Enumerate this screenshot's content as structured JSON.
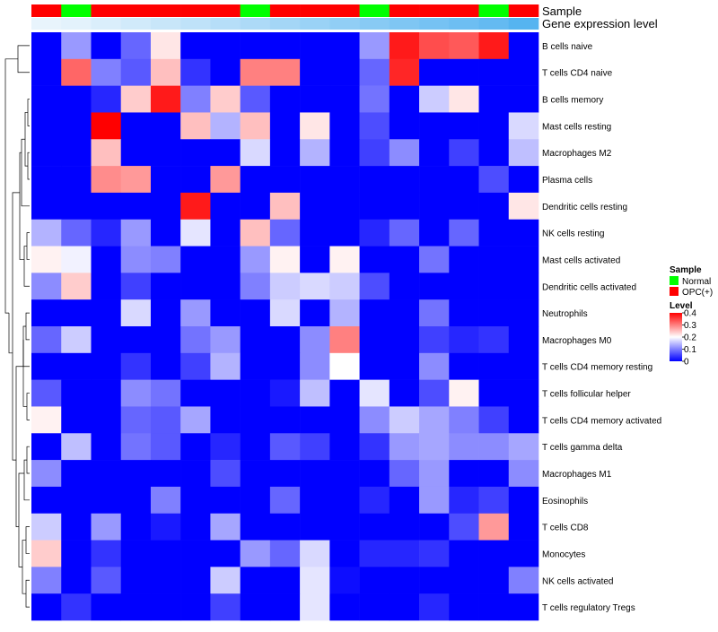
{
  "chart_data": {
    "type": "heatmap",
    "annotation_track_labels": [
      "Sample",
      "Gene expression level"
    ],
    "sample_groups": [
      "OPC(+)",
      "Normal",
      "OPC(+)",
      "OPC(+)",
      "OPC(+)",
      "OPC(+)",
      "OPC(+)",
      "Normal",
      "OPC(+)",
      "OPC(+)",
      "OPC(+)",
      "Normal",
      "OPC(+)",
      "OPC(+)",
      "OPC(+)",
      "Normal",
      "OPC(+)"
    ],
    "gene_expression_level": [
      0.02,
      0.04,
      0.08,
      0.12,
      0.16,
      0.2,
      0.24,
      0.28,
      0.32,
      0.36,
      0.4,
      0.44,
      0.48,
      0.52,
      0.56,
      0.6,
      0.66
    ],
    "rows": [
      "B cells naive",
      "T cells CD4 naive",
      "B cells memory",
      "Mast cells resting",
      "Macrophages M2",
      "Plasma cells",
      "Dendritic cells resting",
      "NK cells resting",
      "Mast cells activated",
      "Dendritic cells activated",
      "Neutrophils",
      "Macrophages M0",
      "T cells CD4 memory resting",
      "T cells follicular helper",
      "T cells CD4 memory activated",
      "T cells gamma delta",
      "Macrophages M1",
      "Eosinophils",
      "T cells CD8",
      "Monocytes",
      "NK cells activated",
      "T cells regulatory  Tregs"
    ],
    "values": [
      [
        0.0,
        0.12,
        0.0,
        0.08,
        0.22,
        0.0,
        0.0,
        0.0,
        0.0,
        0.0,
        0.0,
        0.12,
        0.38,
        0.34,
        0.33,
        0.38,
        0.0
      ],
      [
        0.0,
        0.32,
        0.1,
        0.07,
        0.25,
        0.04,
        0.0,
        0.3,
        0.3,
        0.0,
        0.0,
        0.08,
        0.37,
        0.0,
        0.0,
        0.0,
        0.0
      ],
      [
        0.0,
        0.0,
        0.03,
        0.24,
        0.38,
        0.1,
        0.24,
        0.07,
        0.0,
        0.0,
        0.0,
        0.09,
        0.0,
        0.16,
        0.22,
        0.0,
        0.0
      ],
      [
        0.0,
        0.0,
        0.4,
        0.0,
        0.0,
        0.25,
        0.14,
        0.25,
        0.0,
        0.22,
        0.0,
        0.06,
        0.0,
        0.0,
        0.0,
        0.0,
        0.17
      ],
      [
        0.0,
        0.0,
        0.25,
        0.0,
        0.0,
        0.0,
        0.0,
        0.17,
        0.0,
        0.14,
        0.0,
        0.05,
        0.11,
        0.0,
        0.05,
        0.0,
        0.15
      ],
      [
        0.0,
        0.0,
        0.29,
        0.28,
        0.0,
        0.0,
        0.28,
        0.0,
        0.0,
        0.0,
        0.0,
        0.0,
        0.0,
        0.0,
        0.0,
        0.06,
        0.0
      ],
      [
        0.0,
        0.0,
        0.0,
        0.0,
        0.0,
        0.38,
        0.0,
        0.0,
        0.25,
        0.0,
        0.0,
        0.0,
        0.0,
        0.0,
        0.0,
        0.0,
        0.22
      ],
      [
        0.14,
        0.08,
        0.03,
        0.12,
        0.0,
        0.18,
        0.0,
        0.25,
        0.08,
        0.0,
        0.0,
        0.03,
        0.08,
        0.0,
        0.08,
        0.0,
        0.0
      ],
      [
        0.21,
        0.19,
        0.0,
        0.11,
        0.1,
        0.0,
        0.0,
        0.12,
        0.21,
        0.0,
        0.21,
        0.0,
        0.0,
        0.09,
        0.0,
        0.0,
        0.0
      ],
      [
        0.11,
        0.24,
        0.0,
        0.05,
        0.0,
        0.0,
        0.0,
        0.1,
        0.16,
        0.17,
        0.16,
        0.06,
        0.0,
        0.0,
        0.0,
        0.0,
        0.0
      ],
      [
        0.0,
        0.0,
        0.0,
        0.17,
        0.0,
        0.12,
        0.0,
        0.0,
        0.17,
        0.0,
        0.14,
        0.0,
        0.0,
        0.09,
        0.0,
        0.0,
        0.0
      ],
      [
        0.08,
        0.16,
        0.0,
        0.0,
        0.0,
        0.09,
        0.12,
        0.0,
        0.0,
        0.11,
        0.3,
        0.0,
        0.0,
        0.05,
        0.03,
        0.04,
        0.0
      ],
      [
        0.0,
        0.0,
        0.0,
        0.04,
        0.0,
        0.05,
        0.14,
        0.0,
        0.0,
        0.11,
        0.2,
        0.0,
        0.0,
        0.11,
        0.0,
        0.0,
        0.0
      ],
      [
        0.07,
        0.0,
        0.0,
        0.11,
        0.09,
        0.0,
        0.0,
        0.0,
        0.02,
        0.15,
        0.0,
        0.18,
        0.0,
        0.06,
        0.21,
        0.0,
        0.0
      ],
      [
        0.21,
        0.0,
        0.0,
        0.08,
        0.07,
        0.13,
        0.0,
        0.0,
        0.0,
        0.0,
        0.0,
        0.11,
        0.16,
        0.13,
        0.1,
        0.05,
        0.0
      ],
      [
        0.0,
        0.15,
        0.0,
        0.09,
        0.07,
        0.0,
        0.03,
        0.0,
        0.07,
        0.05,
        0.0,
        0.04,
        0.12,
        0.13,
        0.11,
        0.11,
        0.13
      ],
      [
        0.11,
        0.0,
        0.0,
        0.0,
        0.0,
        0.0,
        0.06,
        0.0,
        0.0,
        0.0,
        0.0,
        0.0,
        0.08,
        0.12,
        0.0,
        0.0,
        0.11
      ],
      [
        0.0,
        0.0,
        0.0,
        0.0,
        0.1,
        0.0,
        0.0,
        0.0,
        0.08,
        0.0,
        0.0,
        0.03,
        0.0,
        0.12,
        0.03,
        0.05,
        0.0
      ],
      [
        0.16,
        0.0,
        0.12,
        0.0,
        0.02,
        0.0,
        0.13,
        0.0,
        0.0,
        0.0,
        0.0,
        0.0,
        0.0,
        0.0,
        0.06,
        0.28,
        0.0
      ],
      [
        0.24,
        0.0,
        0.04,
        0.0,
        0.0,
        0.0,
        0.0,
        0.12,
        0.08,
        0.17,
        0.0,
        0.03,
        0.03,
        0.04,
        0.0,
        0.0,
        0.0
      ],
      [
        0.1,
        0.0,
        0.07,
        0.0,
        0.0,
        0.0,
        0.16,
        0.0,
        0.0,
        0.18,
        0.01,
        0.0,
        0.0,
        0.0,
        0.0,
        0.0,
        0.1
      ],
      [
        0.0,
        0.04,
        0.0,
        0.0,
        0.0,
        0.0,
        0.05,
        0.0,
        0.0,
        0.18,
        0.0,
        0.0,
        0.0,
        0.03,
        0.0,
        0.0,
        0.0
      ]
    ],
    "legend": {
      "sample": {
        "title": "Sample",
        "entries": [
          {
            "label": "Normal",
            "color": "#00ff00"
          },
          {
            "label": "OPC(+)",
            "color": "#ff0000"
          }
        ]
      },
      "level": {
        "title": "Level",
        "ticks": [
          "0.4",
          "0.3",
          "0.2",
          "0.1",
          "0"
        ],
        "range": [
          0,
          0.4
        ],
        "colors": {
          "low": "#0000ff",
          "mid": "#ffffff",
          "high": "#ff0000"
        }
      }
    },
    "colors": {
      "expr_low": "#e8f4fc",
      "expr_high": "#56b4f0"
    }
  }
}
